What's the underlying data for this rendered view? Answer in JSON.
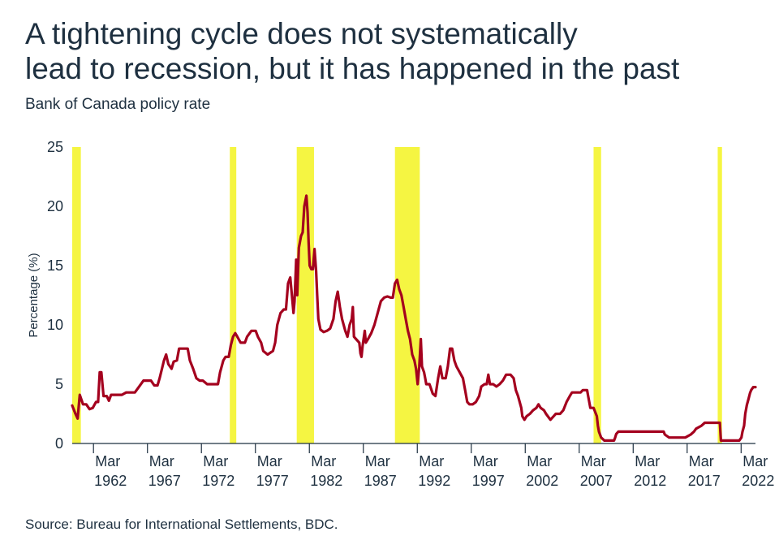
{
  "title_lines": [
    "A tightening cycle does not systematically",
    "lead to recession, but it has happened in the past"
  ],
  "subtitle": "Bank of Canada policy rate",
  "source": "Source: Bureau for International Settlements, BDC.",
  "colors": {
    "line": "#a4001e",
    "recession": "#f5f542",
    "axis": "#1e3040"
  },
  "chart_data": {
    "type": "line",
    "title": "A tightening cycle does not systematically lead to recession, but it has happened in the past",
    "subtitle": "Bank of Canada policy rate",
    "ylabel": "Percentage (%)",
    "xlabel": "",
    "xlim": [
      1960.2,
      2023.5
    ],
    "ylim": [
      0,
      25
    ],
    "grid": false,
    "yticks": [
      0,
      5,
      10,
      15,
      20,
      25
    ],
    "xticks": [
      {
        "value": 1962.17,
        "month": "Mar",
        "year": "1962"
      },
      {
        "value": 1967.17,
        "month": "Mar",
        "year": "1967"
      },
      {
        "value": 1972.17,
        "month": "Mar",
        "year": "1972"
      },
      {
        "value": 1977.17,
        "month": "Mar",
        "year": "1977"
      },
      {
        "value": 1982.17,
        "month": "Mar",
        "year": "1982"
      },
      {
        "value": 1987.17,
        "month": "Mar",
        "year": "1987"
      },
      {
        "value": 1992.17,
        "month": "Mar",
        "year": "1992"
      },
      {
        "value": 1997.17,
        "month": "Mar",
        "year": "1997"
      },
      {
        "value": 2002.17,
        "month": "Mar",
        "year": "2002"
      },
      {
        "value": 2007.17,
        "month": "Mar",
        "year": "2007"
      },
      {
        "value": 2012.17,
        "month": "Mar",
        "year": "2012"
      },
      {
        "value": 2017.17,
        "month": "Mar",
        "year": "2017"
      },
      {
        "value": 2022.17,
        "month": "Mar",
        "year": "2022"
      }
    ],
    "recessions": [
      [
        1960.2,
        1961.0
      ],
      [
        1974.8,
        1975.4
      ],
      [
        1981.0,
        1982.6
      ],
      [
        1990.1,
        1992.4
      ],
      [
        2008.5,
        2009.2
      ],
      [
        2020.0,
        2020.4
      ]
    ],
    "series": [
      {
        "points": [
          [
            1960.2,
            3.2
          ],
          [
            1960.5,
            2.5
          ],
          [
            1960.7,
            2.1
          ],
          [
            1960.9,
            4.1
          ],
          [
            1961.2,
            3.3
          ],
          [
            1961.5,
            3.3
          ],
          [
            1961.8,
            2.9
          ],
          [
            1962.1,
            3.0
          ],
          [
            1962.4,
            3.5
          ],
          [
            1962.6,
            3.5
          ],
          [
            1962.75,
            6.0
          ],
          [
            1962.9,
            6.0
          ],
          [
            1963.1,
            4.0
          ],
          [
            1963.4,
            4.0
          ],
          [
            1963.6,
            3.6
          ],
          [
            1963.8,
            4.1
          ],
          [
            1964.3,
            4.1
          ],
          [
            1964.8,
            4.1
          ],
          [
            1965.2,
            4.3
          ],
          [
            1966.0,
            4.3
          ],
          [
            1966.4,
            4.8
          ],
          [
            1966.8,
            5.3
          ],
          [
            1967.2,
            5.3
          ],
          [
            1967.5,
            5.3
          ],
          [
            1967.8,
            4.9
          ],
          [
            1968.1,
            4.9
          ],
          [
            1968.3,
            5.5
          ],
          [
            1968.7,
            7.0
          ],
          [
            1968.9,
            7.5
          ],
          [
            1969.1,
            6.7
          ],
          [
            1969.4,
            6.3
          ],
          [
            1969.6,
            6.9
          ],
          [
            1969.9,
            7.0
          ],
          [
            1970.1,
            8.0
          ],
          [
            1970.6,
            8.0
          ],
          [
            1970.9,
            8.0
          ],
          [
            1971.1,
            7.0
          ],
          [
            1971.4,
            6.3
          ],
          [
            1971.7,
            5.5
          ],
          [
            1972.0,
            5.3
          ],
          [
            1972.3,
            5.3
          ],
          [
            1972.7,
            5.0
          ],
          [
            1973.3,
            5.0
          ],
          [
            1973.7,
            5.0
          ],
          [
            1973.9,
            6.0
          ],
          [
            1974.2,
            7.0
          ],
          [
            1974.4,
            7.3
          ],
          [
            1974.7,
            7.3
          ],
          [
            1974.9,
            8.3
          ],
          [
            1975.1,
            9.0
          ],
          [
            1975.3,
            9.3
          ],
          [
            1975.5,
            9.0
          ],
          [
            1975.8,
            8.5
          ],
          [
            1976.2,
            8.5
          ],
          [
            1976.4,
            9.0
          ],
          [
            1976.8,
            9.5
          ],
          [
            1977.2,
            9.5
          ],
          [
            1977.4,
            9.0
          ],
          [
            1977.7,
            8.5
          ],
          [
            1977.9,
            7.8
          ],
          [
            1978.3,
            7.5
          ],
          [
            1978.8,
            7.8
          ],
          [
            1979.0,
            8.5
          ],
          [
            1979.2,
            10.0
          ],
          [
            1979.5,
            11.0
          ],
          [
            1979.8,
            11.3
          ],
          [
            1980.0,
            11.3
          ],
          [
            1980.2,
            13.5
          ],
          [
            1980.4,
            14.0
          ],
          [
            1980.6,
            12.0
          ],
          [
            1980.7,
            11.0
          ],
          [
            1980.8,
            12.0
          ],
          [
            1980.95,
            15.5
          ],
          [
            1981.05,
            12.5
          ],
          [
            1981.2,
            16.5
          ],
          [
            1981.4,
            17.5
          ],
          [
            1981.55,
            17.8
          ],
          [
            1981.7,
            20.0
          ],
          [
            1981.9,
            20.9
          ],
          [
            1982.0,
            19.5
          ],
          [
            1982.1,
            17.0
          ],
          [
            1982.2,
            15.0
          ],
          [
            1982.35,
            14.7
          ],
          [
            1982.5,
            14.7
          ],
          [
            1982.65,
            16.4
          ],
          [
            1982.8,
            14.5
          ],
          [
            1982.9,
            12.5
          ],
          [
            1983.0,
            10.5
          ],
          [
            1983.2,
            9.6
          ],
          [
            1983.5,
            9.4
          ],
          [
            1983.8,
            9.5
          ],
          [
            1984.1,
            9.7
          ],
          [
            1984.4,
            10.5
          ],
          [
            1984.6,
            12.0
          ],
          [
            1984.8,
            12.8
          ],
          [
            1985.0,
            11.5
          ],
          [
            1985.2,
            10.5
          ],
          [
            1985.5,
            9.5
          ],
          [
            1985.7,
            9.0
          ],
          [
            1985.9,
            10.0
          ],
          [
            1986.1,
            10.5
          ],
          [
            1986.2,
            11.5
          ],
          [
            1986.3,
            9.0
          ],
          [
            1986.5,
            8.8
          ],
          [
            1986.8,
            8.5
          ],
          [
            1986.9,
            7.6
          ],
          [
            1987.0,
            7.3
          ],
          [
            1987.1,
            8.2
          ],
          [
            1987.3,
            9.5
          ],
          [
            1987.4,
            8.5
          ],
          [
            1987.6,
            8.8
          ],
          [
            1987.9,
            9.3
          ],
          [
            1988.2,
            10.0
          ],
          [
            1988.5,
            11.0
          ],
          [
            1988.8,
            12.0
          ],
          [
            1989.1,
            12.3
          ],
          [
            1989.4,
            12.4
          ],
          [
            1989.7,
            12.3
          ],
          [
            1989.9,
            12.3
          ],
          [
            1990.1,
            13.5
          ],
          [
            1990.3,
            13.8
          ],
          [
            1990.5,
            13.0
          ],
          [
            1990.7,
            12.5
          ],
          [
            1990.9,
            11.5
          ],
          [
            1991.1,
            10.5
          ],
          [
            1991.3,
            9.5
          ],
          [
            1991.5,
            8.8
          ],
          [
            1991.7,
            7.5
          ],
          [
            1991.9,
            7.0
          ],
          [
            1992.05,
            6.3
          ],
          [
            1992.2,
            5.0
          ],
          [
            1992.35,
            6.5
          ],
          [
            1992.5,
            8.8
          ],
          [
            1992.6,
            6.5
          ],
          [
            1992.8,
            6.0
          ],
          [
            1992.9,
            5.5
          ],
          [
            1993.0,
            5.0
          ],
          [
            1993.3,
            5.0
          ],
          [
            1993.6,
            4.2
          ],
          [
            1993.85,
            4.0
          ],
          [
            1994.1,
            5.5
          ],
          [
            1994.3,
            6.5
          ],
          [
            1994.5,
            5.5
          ],
          [
            1994.8,
            5.5
          ],
          [
            1995.0,
            6.5
          ],
          [
            1995.2,
            8.0
          ],
          [
            1995.4,
            8.0
          ],
          [
            1995.6,
            7.0
          ],
          [
            1995.8,
            6.5
          ],
          [
            1996.1,
            6.0
          ],
          [
            1996.4,
            5.5
          ],
          [
            1996.6,
            4.5
          ],
          [
            1996.8,
            3.5
          ],
          [
            1997.0,
            3.3
          ],
          [
            1997.3,
            3.3
          ],
          [
            1997.6,
            3.5
          ],
          [
            1997.9,
            4.0
          ],
          [
            1998.1,
            4.8
          ],
          [
            1998.4,
            5.0
          ],
          [
            1998.6,
            5.0
          ],
          [
            1998.75,
            5.8
          ],
          [
            1998.9,
            5.0
          ],
          [
            1999.2,
            5.0
          ],
          [
            1999.5,
            4.8
          ],
          [
            1999.8,
            5.0
          ],
          [
            2000.1,
            5.3
          ],
          [
            2000.4,
            5.8
          ],
          [
            2000.8,
            5.8
          ],
          [
            2001.1,
            5.5
          ],
          [
            2001.3,
            4.5
          ],
          [
            2001.5,
            4.0
          ],
          [
            2001.8,
            3.0
          ],
          [
            2001.9,
            2.3
          ],
          [
            2002.1,
            2.0
          ],
          [
            2002.3,
            2.3
          ],
          [
            2002.6,
            2.5
          ],
          [
            2002.9,
            2.8
          ],
          [
            2003.2,
            3.0
          ],
          [
            2003.4,
            3.3
          ],
          [
            2003.6,
            3.0
          ],
          [
            2003.9,
            2.8
          ],
          [
            2004.1,
            2.5
          ],
          [
            2004.5,
            2.0
          ],
          [
            2004.8,
            2.3
          ],
          [
            2005.0,
            2.5
          ],
          [
            2005.4,
            2.5
          ],
          [
            2005.7,
            2.8
          ],
          [
            2006.0,
            3.5
          ],
          [
            2006.3,
            4.0
          ],
          [
            2006.5,
            4.3
          ],
          [
            2006.8,
            4.3
          ],
          [
            2007.3,
            4.3
          ],
          [
            2007.5,
            4.5
          ],
          [
            2007.9,
            4.5
          ],
          [
            2008.0,
            4.0
          ],
          [
            2008.2,
            3.0
          ],
          [
            2008.5,
            3.0
          ],
          [
            2008.8,
            2.3
          ],
          [
            2008.9,
            1.5
          ],
          [
            2009.0,
            1.0
          ],
          [
            2009.2,
            0.5
          ],
          [
            2009.5,
            0.25
          ],
          [
            2009.8,
            0.25
          ],
          [
            2010.1,
            0.25
          ],
          [
            2010.4,
            0.25
          ],
          [
            2010.5,
            0.5
          ],
          [
            2010.6,
            0.8
          ],
          [
            2010.8,
            1.0
          ],
          [
            2011.5,
            1.0
          ],
          [
            2012.5,
            1.0
          ],
          [
            2014.0,
            1.0
          ],
          [
            2015.0,
            1.0
          ],
          [
            2015.1,
            0.75
          ],
          [
            2015.5,
            0.5
          ],
          [
            2016.0,
            0.5
          ],
          [
            2017.0,
            0.5
          ],
          [
            2017.5,
            0.75
          ],
          [
            2017.8,
            1.0
          ],
          [
            2018.0,
            1.25
          ],
          [
            2018.5,
            1.5
          ],
          [
            2018.8,
            1.75
          ],
          [
            2019.5,
            1.75
          ],
          [
            2019.9,
            1.75
          ],
          [
            2020.2,
            1.75
          ],
          [
            2020.3,
            0.25
          ],
          [
            2020.6,
            0.25
          ],
          [
            2021.0,
            0.25
          ],
          [
            2021.5,
            0.25
          ],
          [
            2022.0,
            0.25
          ],
          [
            2022.2,
            0.5
          ],
          [
            2022.3,
            1.0
          ],
          [
            2022.45,
            1.5
          ],
          [
            2022.55,
            2.5
          ],
          [
            2022.7,
            3.25
          ],
          [
            2022.85,
            3.75
          ],
          [
            2023.0,
            4.25
          ],
          [
            2023.1,
            4.5
          ],
          [
            2023.3,
            4.75
          ],
          [
            2023.5,
            4.75
          ]
        ]
      }
    ]
  }
}
